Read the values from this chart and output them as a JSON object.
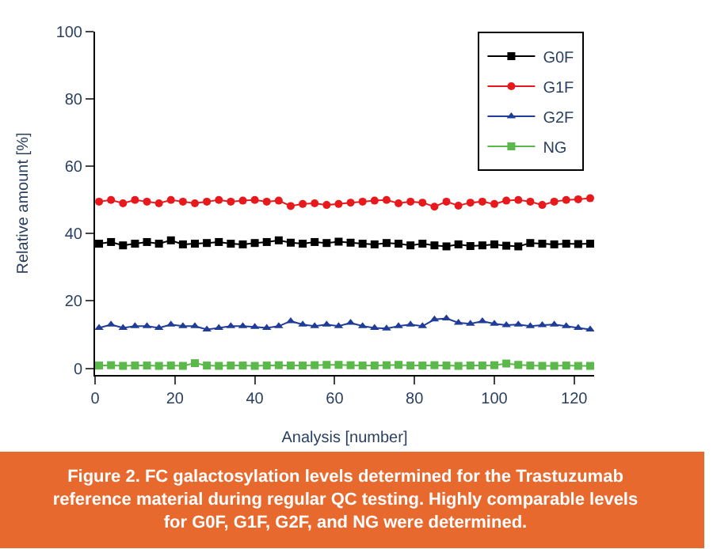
{
  "chart_data": {
    "type": "line",
    "xlabel": "Analysis [number]",
    "ylabel": "Relative amount [%]",
    "x": [
      1,
      4,
      7,
      10,
      13,
      16,
      19,
      22,
      25,
      28,
      31,
      34,
      37,
      40,
      43,
      46,
      49,
      52,
      55,
      58,
      61,
      64,
      67,
      70,
      73,
      76,
      79,
      82,
      85,
      88,
      91,
      94,
      97,
      100,
      103,
      106,
      109,
      112,
      115,
      118,
      121,
      124
    ],
    "series": [
      {
        "name": "G0F",
        "color": "#000000",
        "marker": "square",
        "values": [
          37,
          37.5,
          36.5,
          37,
          37.5,
          37,
          38,
          36.8,
          37,
          37.2,
          37.5,
          37,
          36.8,
          37.2,
          37.5,
          38,
          37.3,
          37,
          37.5,
          37.2,
          37.6,
          37.3,
          37,
          36.8,
          37.2,
          37,
          36.5,
          37,
          36.5,
          36.2,
          36.8,
          36.3,
          36.5,
          36.8,
          36.4,
          36.2,
          37.2,
          37,
          36.8,
          37,
          36.9,
          37
        ]
      },
      {
        "name": "G1F",
        "color": "#e8191c",
        "marker": "circle",
        "values": [
          49.5,
          50,
          49,
          50,
          49.5,
          49,
          50,
          49.5,
          49,
          49.5,
          50,
          49.5,
          49.8,
          50,
          49.5,
          49.8,
          48.2,
          48.8,
          49,
          48.5,
          48.8,
          49.2,
          49.5,
          49.8,
          50,
          49,
          49.5,
          49.2,
          48,
          49.5,
          48.3,
          49.2,
          49.5,
          48.8,
          49.8,
          50,
          49.5,
          48.5,
          49.5,
          50,
          50.2,
          50.5
        ]
      },
      {
        "name": "G2F",
        "color": "#1f3c99",
        "marker": "triangle",
        "values": [
          12,
          13,
          12,
          12.5,
          12.5,
          12,
          13,
          12.5,
          12.5,
          11.5,
          12,
          12.5,
          12.5,
          12.3,
          12,
          12.5,
          14,
          13,
          12.5,
          13,
          12.5,
          13.5,
          12.5,
          12,
          11.8,
          12.5,
          13,
          12.5,
          14.5,
          14.8,
          13.5,
          13.2,
          14,
          13.2,
          12.8,
          13,
          12.5,
          12.8,
          13,
          12.5,
          12,
          11.5
        ]
      },
      {
        "name": "NG",
        "color": "#5bb84a",
        "marker": "square",
        "values": [
          0.8,
          0.9,
          0.7,
          0.8,
          0.8,
          0.7,
          0.8,
          0.7,
          1.5,
          0.8,
          0.7,
          0.8,
          0.8,
          0.7,
          0.8,
          0.9,
          0.8,
          0.8,
          0.9,
          1,
          1,
          0.9,
          0.8,
          0.8,
          0.9,
          1,
          0.8,
          0.8,
          0.9,
          0.8,
          0.7,
          0.8,
          0.8,
          0.9,
          1.4,
          1,
          0.8,
          0.7,
          0.7,
          0.8,
          0.7,
          0.7
        ]
      }
    ],
    "xlim": [
      0,
      125
    ],
    "ylim": [
      -2,
      100
    ],
    "xticks": [
      0,
      20,
      40,
      60,
      80,
      100,
      120
    ],
    "yticks": [
      0,
      20,
      40,
      60,
      80,
      100
    ],
    "grid": false,
    "legend": "top right",
    "line_style": "solid",
    "annotations": [
      "Figure 2. FC galactosylation levels determined for the Trastuzumab reference material during regular QC testing. Highly comparable levels for G0F, G1F, G2F, and NG were determined."
    ]
  }
}
